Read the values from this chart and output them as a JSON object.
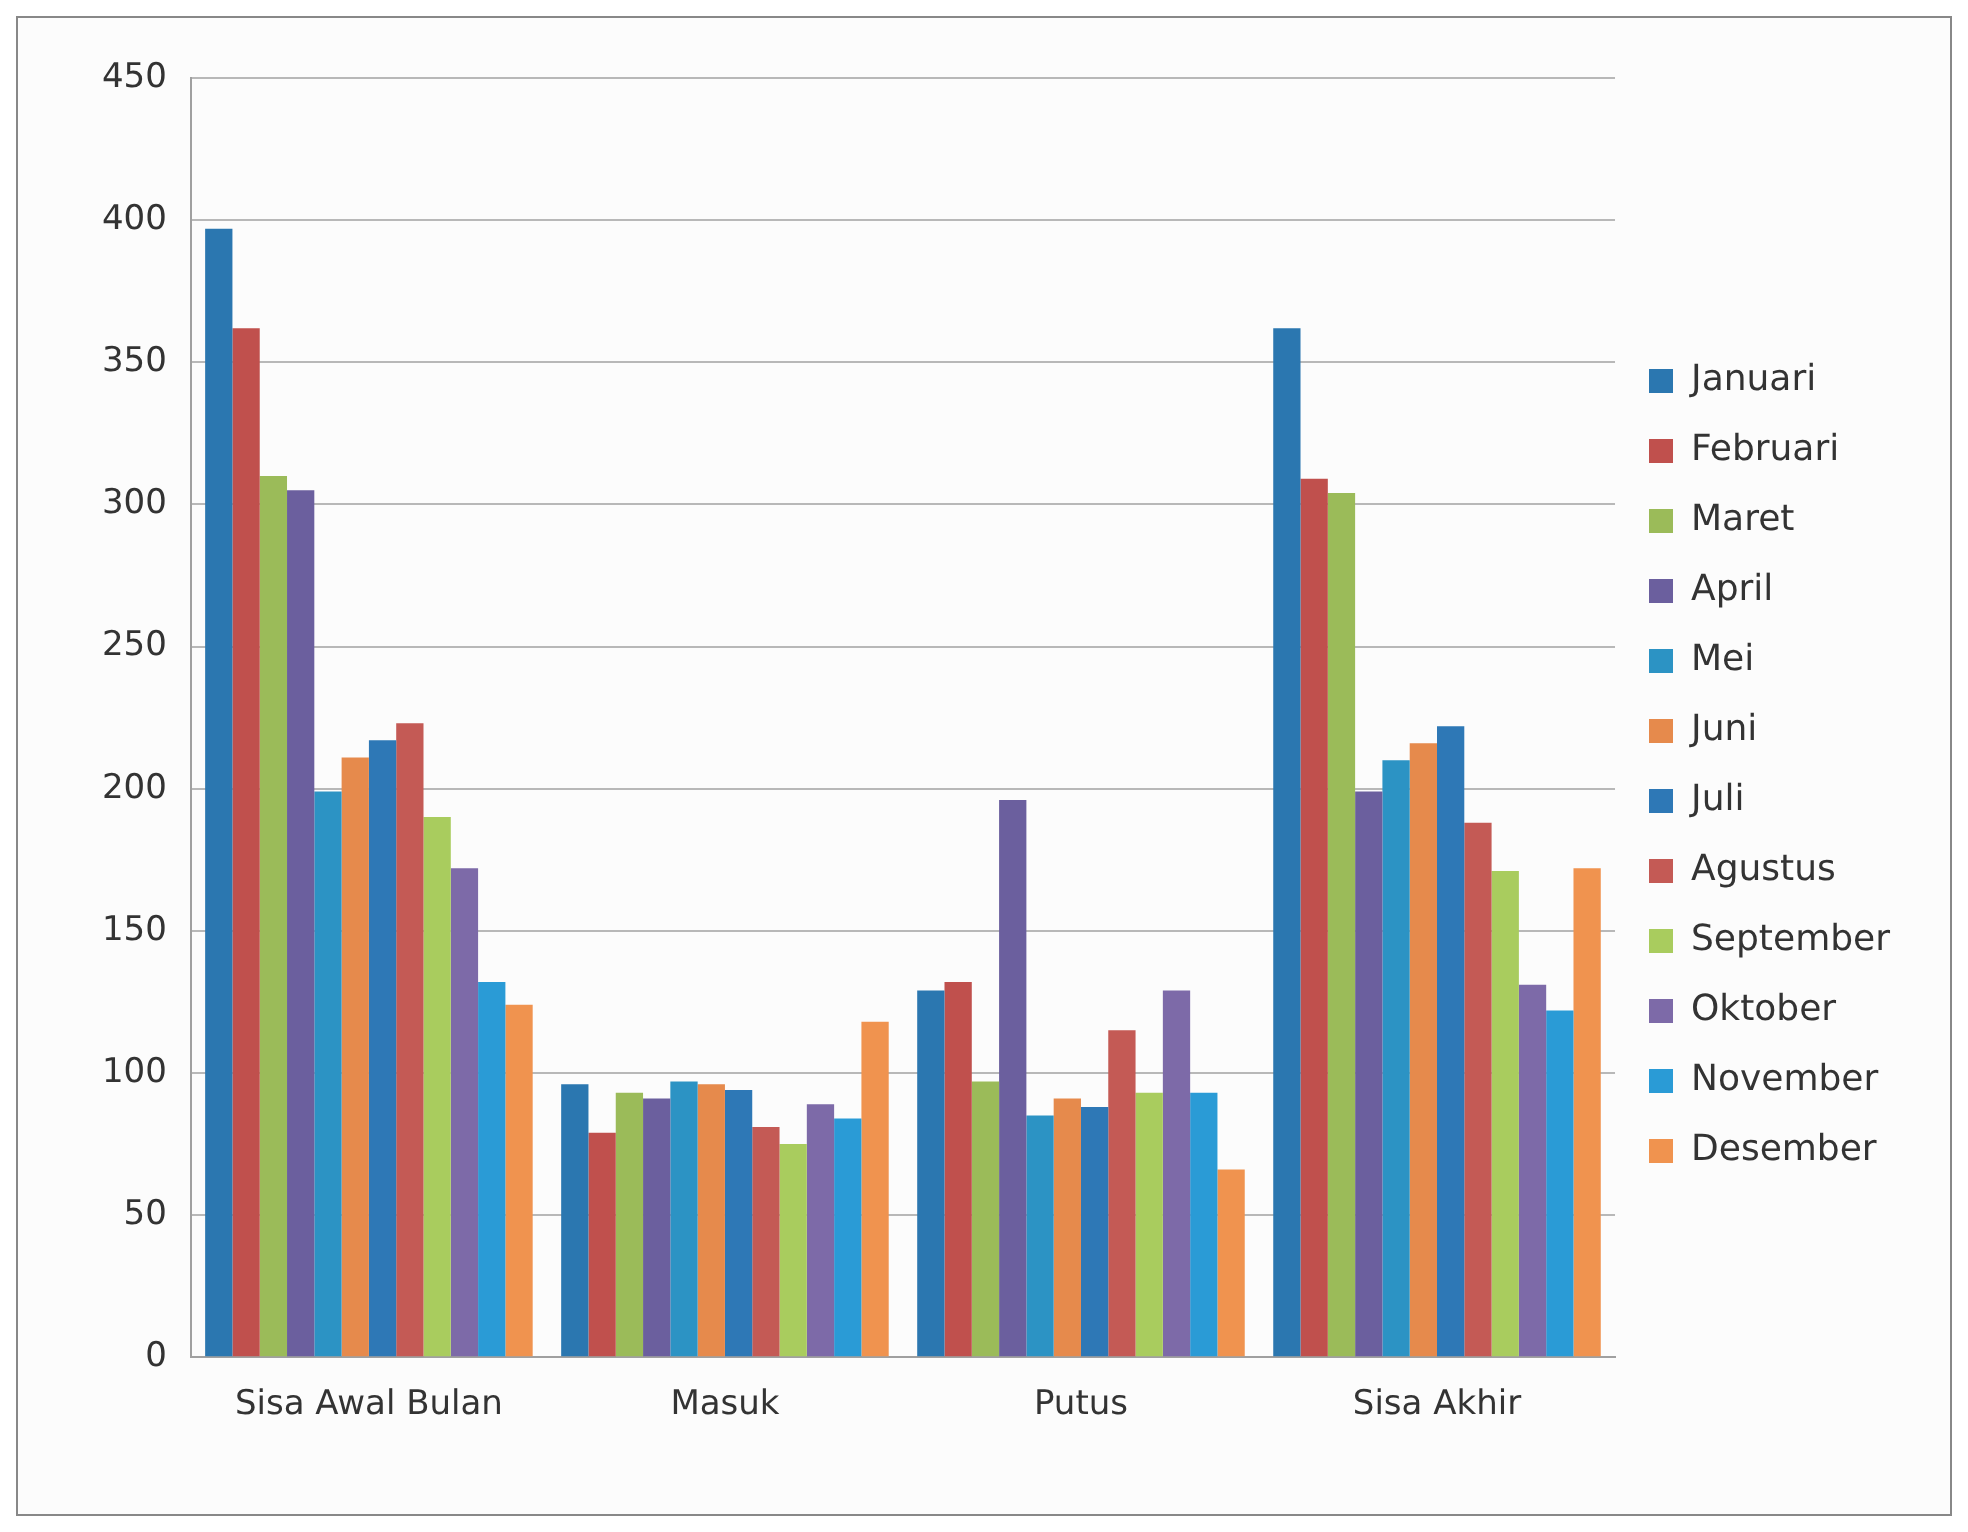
{
  "chart_data": {
    "type": "bar",
    "categories": [
      "Sisa Awal Bulan",
      "Masuk",
      "Putus",
      "Sisa Akhir"
    ],
    "series": [
      {
        "name": "Januari",
        "color": "#2b77b0",
        "values": [
          397,
          96,
          129,
          362
        ]
      },
      {
        "name": "Februari",
        "color": "#c0504d",
        "values": [
          362,
          79,
          132,
          309
        ]
      },
      {
        "name": "Maret",
        "color": "#9bbb59",
        "values": [
          310,
          93,
          97,
          304
        ]
      },
      {
        "name": "April",
        "color": "#6b5f9e",
        "values": [
          305,
          91,
          196,
          199
        ]
      },
      {
        "name": "Mei",
        "color": "#2c93c4",
        "values": [
          199,
          97,
          85,
          210
        ]
      },
      {
        "name": "Juni",
        "color": "#e68a4c",
        "values": [
          211,
          96,
          91,
          216
        ]
      },
      {
        "name": "Juli",
        "color": "#2e78b6",
        "values": [
          217,
          94,
          88,
          222
        ]
      },
      {
        "name": "Agustus",
        "color": "#c45a55",
        "values": [
          223,
          81,
          115,
          188
        ]
      },
      {
        "name": "September",
        "color": "#a9cc5e",
        "values": [
          190,
          75,
          93,
          171
        ]
      },
      {
        "name": "Oktober",
        "color": "#7d6aa8",
        "values": [
          172,
          89,
          129,
          131
        ]
      },
      {
        "name": "November",
        "color": "#2a9bd6",
        "values": [
          132,
          84,
          93,
          122
        ]
      },
      {
        "name": "Desember",
        "color": "#f0934f",
        "values": [
          124,
          118,
          66,
          172
        ]
      }
    ],
    "ylim": [
      0,
      450
    ],
    "yticks": [
      0,
      50,
      100,
      150,
      200,
      250,
      300,
      350,
      400,
      450
    ],
    "grid": "y",
    "legend": "right"
  }
}
